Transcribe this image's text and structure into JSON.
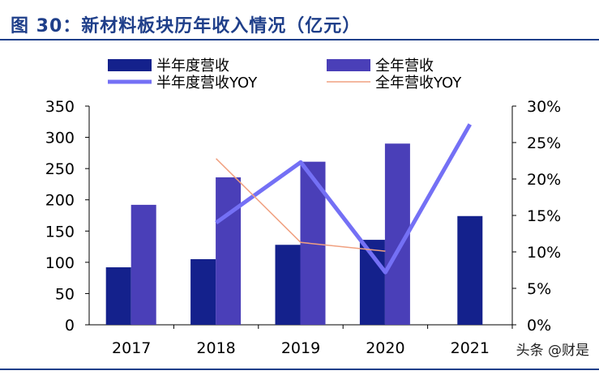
{
  "title": "图 30：新材料板块历年收入情况（亿元）",
  "watermark": "头条 @财是",
  "colors": {
    "title": "#1f3f8a",
    "half_bar": "#14218c",
    "full_bar": "#4a3fb8",
    "half_yoy": "#7470f5",
    "full_yoy": "#f0a080"
  },
  "chart_data": {
    "type": "bar",
    "categories": [
      "2017",
      "2018",
      "2019",
      "2020",
      "2021"
    ],
    "ylim": [
      0,
      350
    ],
    "y2lim": [
      0,
      0.3
    ],
    "yticks": [
      "0",
      "50",
      "100",
      "150",
      "200",
      "250",
      "300",
      "350"
    ],
    "y2ticks": [
      "0%",
      "5%",
      "10%",
      "15%",
      "20%",
      "25%",
      "30%"
    ],
    "legend_position": "top",
    "series": [
      {
        "name": "半年度营收",
        "kind": "bar",
        "axis": "left",
        "values": [
          92,
          105,
          128,
          136,
          174
        ]
      },
      {
        "name": "全年营收",
        "kind": "bar",
        "axis": "left",
        "values": [
          192,
          236,
          261,
          290,
          null
        ]
      },
      {
        "name": "半年度营收YOY",
        "kind": "line",
        "axis": "right",
        "values": [
          null,
          0.14,
          0.223,
          0.072,
          0.275
        ]
      },
      {
        "name": "全年营收YOY",
        "kind": "line",
        "axis": "right",
        "values": [
          null,
          0.228,
          0.113,
          0.101,
          null
        ]
      }
    ]
  }
}
